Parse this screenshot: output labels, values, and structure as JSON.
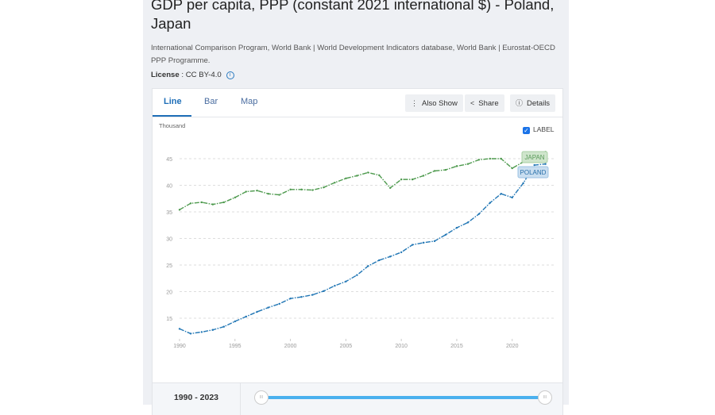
{
  "header": {
    "title": "GDP per capita, PPP (constant 2021 international $) - Poland, Japan",
    "source": "International Comparison Program, World Bank | World Development Indicators database, World Bank | Eurostat-OECD PPP Programme.",
    "license_label": "License",
    "license_value": " : CC BY-4.0"
  },
  "tabs": [
    {
      "label": "Line"
    },
    {
      "label": "Bar"
    },
    {
      "label": "Map"
    }
  ],
  "toolbar": {
    "also_show": "Also Show",
    "share": "Share",
    "details": "Details"
  },
  "label_toggle": {
    "label": "LABEL",
    "checked": true
  },
  "range": {
    "label": "1990 - 2023",
    "start": 1990,
    "end": 2023
  },
  "colors": {
    "poland": "#2277b5",
    "japan": "#4e9a4e",
    "accent": "#1f6fb8"
  },
  "chart_data": {
    "type": "line",
    "ylabel": "Thousand",
    "xlim": [
      1990,
      2023
    ],
    "ylim": [
      11,
      47
    ],
    "yticks": [
      15,
      20,
      25,
      30,
      35,
      40,
      45
    ],
    "xticks": [
      1990,
      1995,
      2000,
      2005,
      2010,
      2015,
      2020
    ],
    "grid": true,
    "x": [
      1990,
      1991,
      1992,
      1993,
      1994,
      1995,
      1996,
      1997,
      1998,
      1999,
      2000,
      2001,
      2002,
      2003,
      2004,
      2005,
      2006,
      2007,
      2008,
      2009,
      2010,
      2011,
      2012,
      2013,
      2014,
      2015,
      2016,
      2017,
      2018,
      2019,
      2020,
      2021,
      2022,
      2023
    ],
    "series": [
      {
        "name": "JAPAN",
        "values": [
          35.4,
          36.6,
          36.8,
          36.4,
          36.8,
          37.7,
          38.8,
          39.0,
          38.4,
          38.2,
          39.2,
          39.2,
          39.1,
          39.6,
          40.5,
          41.3,
          41.8,
          42.4,
          41.9,
          39.5,
          41.1,
          41.1,
          41.8,
          42.7,
          42.9,
          43.6,
          44.0,
          44.8,
          45.0,
          45.0,
          43.2,
          44.4,
          45.3,
          46.3
        ]
      },
      {
        "name": "POLAND",
        "values": [
          13.0,
          12.1,
          12.4,
          12.8,
          13.4,
          14.4,
          15.3,
          16.2,
          17.0,
          17.7,
          18.7,
          19.0,
          19.4,
          20.1,
          21.1,
          21.9,
          23.1,
          24.8,
          25.9,
          26.6,
          27.4,
          28.8,
          29.2,
          29.5,
          30.7,
          32.0,
          33.0,
          34.6,
          36.7,
          38.4,
          37.7,
          40.4,
          43.8,
          44.0
        ]
      }
    ]
  }
}
